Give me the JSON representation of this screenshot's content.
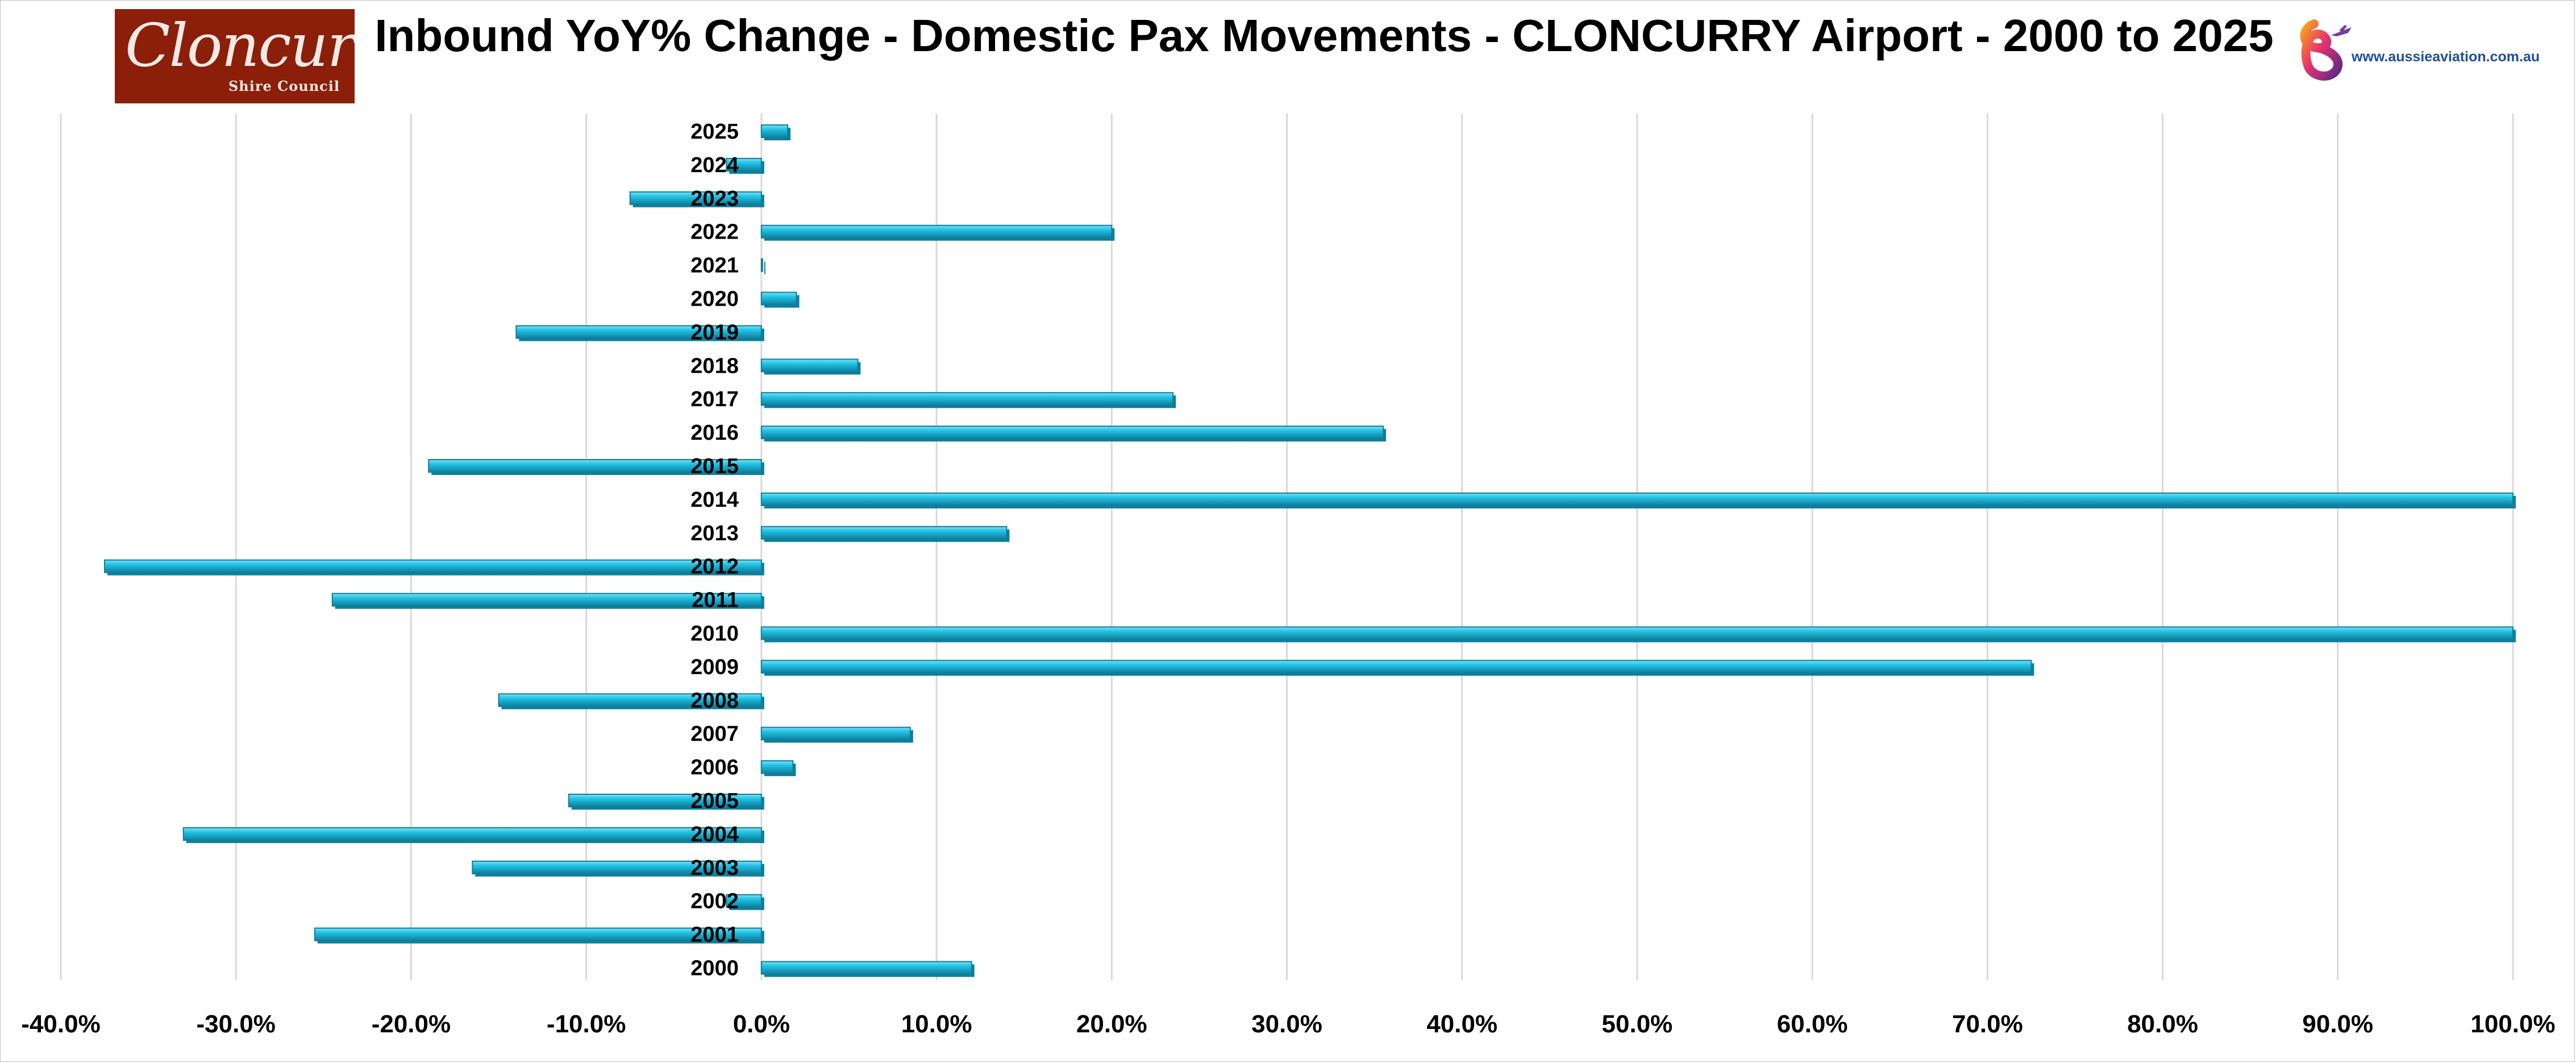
{
  "logo_left": {
    "script_text": "Cloncurry",
    "sub_text": "Shire Council",
    "bg_color": "#8b1f0a"
  },
  "logo_right": {
    "icon": "aussie-aviation-logo-icon",
    "site_text": "www.aussieaviation.com.au"
  },
  "colors": {
    "bar_face": "#22c3e6",
    "bar_dark": "#0e7f9c",
    "bar_light": "#7fe0f3",
    "grid": "#d9d9d9"
  },
  "chart_data": {
    "type": "bar",
    "orientation": "horizontal",
    "title": "Inbound YoY% Change - Domestic Pax Movements - CLONCURRY Airport - 2000 to 2025",
    "xlabel": "",
    "ylabel": "",
    "xlim": [
      -40,
      100
    ],
    "x_tick_labels": [
      "-40.0%",
      "-30.0%",
      "-20.0%",
      "-10.0%",
      "0.0%",
      "10.0%",
      "20.0%",
      "30.0%",
      "40.0%",
      "50.0%",
      "60.0%",
      "70.0%",
      "80.0%",
      "90.0%",
      "100.0%"
    ],
    "grid": "vertical",
    "legend": "none",
    "categories": [
      "2025",
      "2024",
      "2023",
      "2022",
      "2021",
      "2020",
      "2019",
      "2018",
      "2017",
      "2016",
      "2015",
      "2014",
      "2013",
      "2012",
      "2011",
      "2010",
      "2009",
      "2008",
      "2007",
      "2006",
      "2005",
      "2004",
      "2003",
      "2002",
      "2001",
      "2000"
    ],
    "values": [
      1.5,
      -2,
      -7.5,
      20,
      0,
      2,
      -14,
      5.5,
      23.5,
      35.5,
      -19,
      100,
      14,
      -37.5,
      -24.5,
      100,
      72.5,
      -15,
      8.5,
      1.8,
      -11,
      -33,
      -16.5,
      -2,
      -25.5,
      12
    ]
  }
}
